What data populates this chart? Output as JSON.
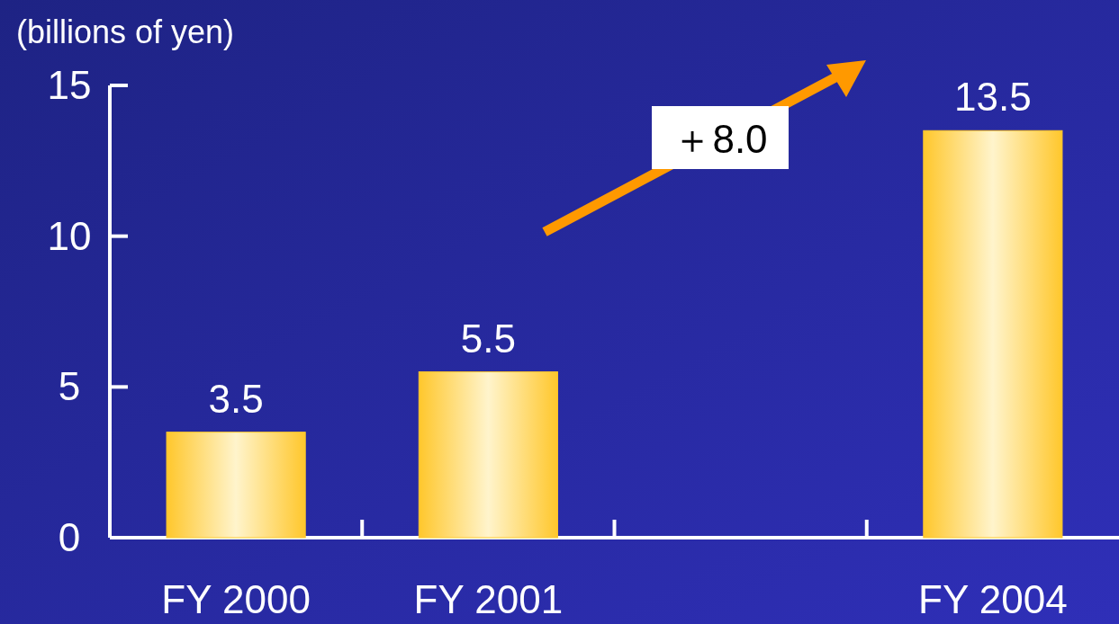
{
  "chart_data": {
    "type": "bar",
    "ylabel": "(billions of yen)",
    "categories": [
      "FY 2000",
      "FY 2001",
      null,
      "FY 2004"
    ],
    "values": [
      3.5,
      5.5,
      null,
      13.5
    ],
    "color": "#ffc72c",
    "ylim": [
      0,
      15
    ],
    "yticks": [
      0,
      5,
      10,
      15
    ],
    "data_labels": true,
    "annotations": [
      "＋8.0"
    ]
  }
}
